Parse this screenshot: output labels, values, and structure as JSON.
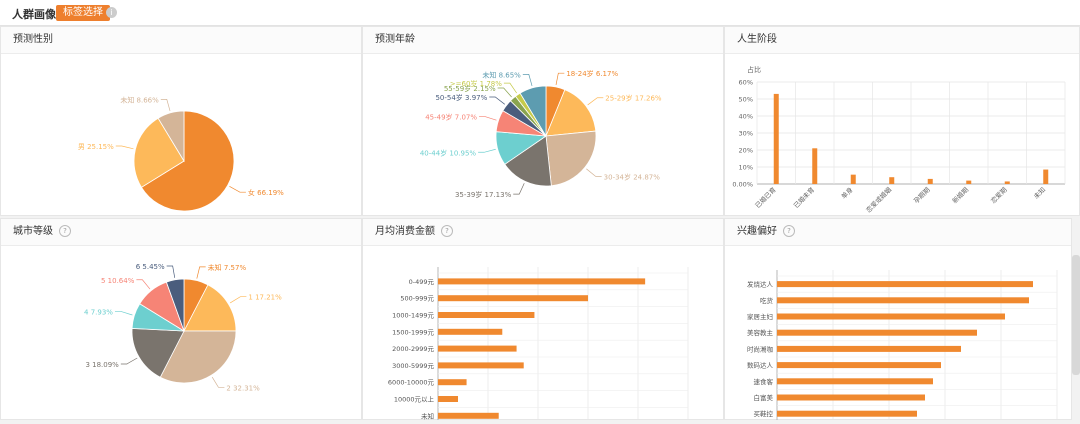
{
  "header": {
    "title": "人群画像",
    "tag_button": "标签选择",
    "info_icon": "info-icon"
  },
  "panels": {
    "gender": {
      "title": "预测性别"
    },
    "age": {
      "title": "预测年龄"
    },
    "life": {
      "title": "人生阶段"
    },
    "city": {
      "title": "城市等级"
    },
    "spend": {
      "title": "月均消费金额"
    },
    "interest": {
      "title": "兴趣偏好"
    }
  },
  "colors": {
    "orange": "#f0892f",
    "yellow": "#fdb95a",
    "tan": "#d4b598",
    "gray": "#7a746d",
    "teal": "#6dcfcf",
    "salmon": "#f68476",
    "slate": "#4a5d7d",
    "steel": "#5d9cb0",
    "olive": "#8aa44f",
    "lime": "#c5ca4a"
  },
  "chart_data": [
    {
      "type": "pie",
      "title": "预测性别",
      "slices": [
        {
          "label": "女",
          "value": 66.19,
          "text": "女 66.19%",
          "color": "#f0892f"
        },
        {
          "label": "男",
          "value": 25.15,
          "text": "男 25.15%",
          "color": "#fdb95a"
        },
        {
          "label": "未知",
          "value": 8.66,
          "text": "未知 8.66%",
          "color": "#d4b598"
        }
      ]
    },
    {
      "type": "pie",
      "title": "预测年龄",
      "slices": [
        {
          "label": "18-24岁",
          "value": 6.17,
          "text": "18-24岁 6.17%",
          "color": "#f0892f"
        },
        {
          "label": "25-29岁",
          "value": 17.26,
          "text": "25-29岁 17.26%",
          "color": "#fdb95a"
        },
        {
          "label": "30-34岁",
          "value": 24.87,
          "text": "30-34岁 24.87%",
          "color": "#d4b598"
        },
        {
          "label": "35-39岁",
          "value": 17.13,
          "text": "35-39岁 17.13%",
          "color": "#7a746d"
        },
        {
          "label": "40-44岁",
          "value": 10.95,
          "text": "40-44岁 10.95%",
          "color": "#6dcfcf"
        },
        {
          "label": "45-49岁",
          "value": 7.07,
          "text": "45-49岁 7.07%",
          "color": "#f68476"
        },
        {
          "label": "50-54岁",
          "value": 3.97,
          "text": "50-54岁 3.97%",
          "color": "#4a5d7d"
        },
        {
          "label": "55-59岁",
          "value": 2.15,
          "text": "55-59岁 2.15%",
          "color": "#8aa44f"
        },
        {
          "label": ">=60岁",
          "value": 1.78,
          "text": ">=60岁 1.78%",
          "color": "#c5ca4a"
        },
        {
          "label": "未知",
          "value": 8.65,
          "text": "未知 8.65%",
          "color": "#5d9cb0"
        }
      ]
    },
    {
      "type": "bar",
      "title": "人生阶段",
      "ylabel": "占比",
      "ylim": [
        0,
        60
      ],
      "yticks": [
        "0.00%",
        "10%",
        "20%",
        "30%",
        "40%",
        "50%",
        "60%"
      ],
      "categories": [
        "已婚已育",
        "已婚未育",
        "单身",
        "恋爱或婚姻",
        "孕期期",
        "新婚期",
        "恋爱期",
        "未知"
      ],
      "values": [
        53,
        21,
        5.5,
        4,
        3,
        2,
        1.5,
        8.5
      ],
      "color": "#f0892f"
    },
    {
      "type": "pie",
      "title": "城市等级",
      "slices": [
        {
          "label": "未知",
          "value": 7.57,
          "text": "未知 7.57%",
          "color": "#f0892f"
        },
        {
          "label": "1",
          "value": 17.21,
          "text": "1 17.21%",
          "color": "#fdb95a"
        },
        {
          "label": "2",
          "value": 32.31,
          "text": "2 32.31%",
          "color": "#d4b598"
        },
        {
          "label": "3",
          "value": 18.09,
          "text": "3 18.09%",
          "color": "#7a746d"
        },
        {
          "label": "4",
          "value": 7.93,
          "text": "4 7.93%",
          "color": "#6dcfcf"
        },
        {
          "label": "5",
          "value": 10.64,
          "text": "5 10.64%",
          "color": "#f68476"
        },
        {
          "label": "6",
          "value": 5.45,
          "text": "6 5.45%",
          "color": "#4a5d7d"
        }
      ]
    },
    {
      "type": "bar",
      "orientation": "horizontal",
      "title": "月均消费金额",
      "categories": [
        "0-499元",
        "500-999元",
        "1000-1499元",
        "1500-1999元",
        "2000-2999元",
        "3000-5999元",
        "6000-10000元",
        "10000元以上",
        "未知"
      ],
      "values": [
        29,
        21,
        13.5,
        9,
        11,
        12,
        4,
        2.8,
        8.5
      ],
      "xlim": [
        0,
        35
      ],
      "color": "#f0892f"
    },
    {
      "type": "bar",
      "orientation": "horizontal",
      "title": "兴趣偏好",
      "categories": [
        "发烧达人",
        "吃货",
        "家居主妇",
        "美容教主",
        "时尚潮咖",
        "数码达人",
        "速食客",
        "白富美",
        "买鞋控"
      ],
      "values": [
        32,
        31.5,
        28.5,
        25,
        23,
        20.5,
        19.5,
        18.5,
        17.5
      ],
      "xlim": [
        0,
        35
      ],
      "color": "#f0892f"
    }
  ]
}
